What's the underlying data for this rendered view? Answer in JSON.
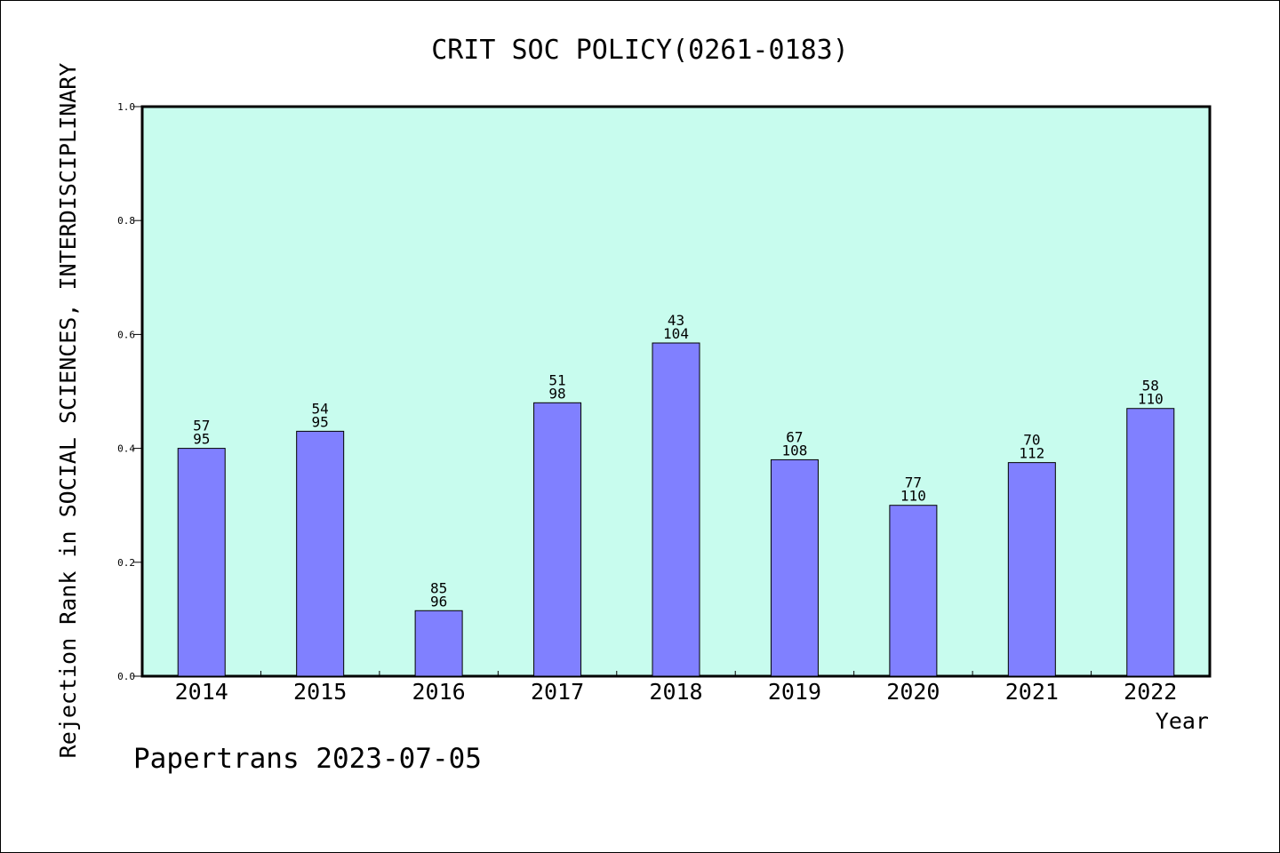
{
  "chart_data": {
    "type": "bar",
    "title": "CRIT SOC POLICY(0261-0183)",
    "xlabel": "Year",
    "ylabel": "Rejection Rank in SOCIAL SCIENCES, INTERDISCIPLINARY",
    "ylim": [
      0,
      1.0
    ],
    "yticks": [
      "0.0",
      "0.2",
      "0.4",
      "0.6",
      "0.8",
      "1.0"
    ],
    "categories": [
      "2014",
      "2015",
      "2016",
      "2017",
      "2018",
      "2019",
      "2020",
      "2021",
      "2022"
    ],
    "values": [
      0.4,
      0.43,
      0.115,
      0.48,
      0.585,
      0.38,
      0.3,
      0.375,
      0.47
    ],
    "rank_labels": [
      "57",
      "54",
      "85",
      "51",
      "43",
      "67",
      "77",
      "70",
      "58"
    ],
    "total_labels": [
      "95",
      "95",
      "96",
      "98",
      "104",
      "108",
      "110",
      "112",
      "110"
    ],
    "grid": false,
    "legend": "none",
    "colors": {
      "plot_bg": "#c8fcee",
      "bar": "#8080ff",
      "bar_stroke": "#000000"
    }
  },
  "footer": {
    "credit": "Papertrans 2023-07-05"
  }
}
